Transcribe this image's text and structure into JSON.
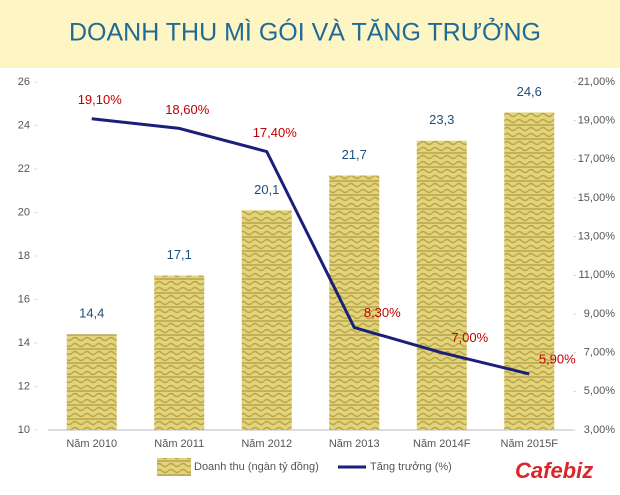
{
  "chart_data": {
    "type": "bar-line",
    "title": "DOANH THU MÌ GÓI VÀ TĂNG TRƯỞNG",
    "categories": [
      "Năm 2010",
      "Năm 2011",
      "Năm 2012",
      "Năm 2013",
      "Năm 2014F",
      "Năm 2015F"
    ],
    "series": [
      {
        "name": "Doanh thu (ngàn tỷ đồng)",
        "type": "bar",
        "color": "#e0d27a",
        "values": [
          14.4,
          17.1,
          20.1,
          21.7,
          23.3,
          24.6
        ],
        "value_labels": [
          "14,4",
          "17,1",
          "20,1",
          "21,7",
          "23,3",
          "24,6"
        ]
      },
      {
        "name": "Tăng trưởng (%)",
        "type": "line",
        "axis": "y2",
        "color": "#1a1f7a",
        "values": [
          19.1,
          18.6,
          17.4,
          8.3,
          7.0,
          5.9
        ],
        "value_labels": [
          "19,10%",
          "18,60%",
          "17,40%",
          "8,30%",
          "7,00%",
          "5,90%"
        ]
      }
    ],
    "ylim": [
      10,
      26
    ],
    "yticks": [
      10,
      12,
      14,
      16,
      18,
      20,
      22,
      24,
      26
    ],
    "y2lim": [
      3,
      21
    ],
    "y2ticks": [
      {
        "value": 3,
        "label": "3,00%"
      },
      {
        "value": 5,
        "label": "5,00%"
      },
      {
        "value": 7,
        "label": "7,00%"
      },
      {
        "value": 9,
        "label": "9,00%"
      },
      {
        "value": 11,
        "label": "11,00%"
      },
      {
        "value": 13,
        "label": "13,00%"
      },
      {
        "value": 15,
        "label": "15,00%"
      },
      {
        "value": 17,
        "label": "17,00%"
      },
      {
        "value": 19,
        "label": "19,00%"
      },
      {
        "value": 21,
        "label": "21,00%"
      }
    ],
    "logo": "Cafebiz"
  }
}
